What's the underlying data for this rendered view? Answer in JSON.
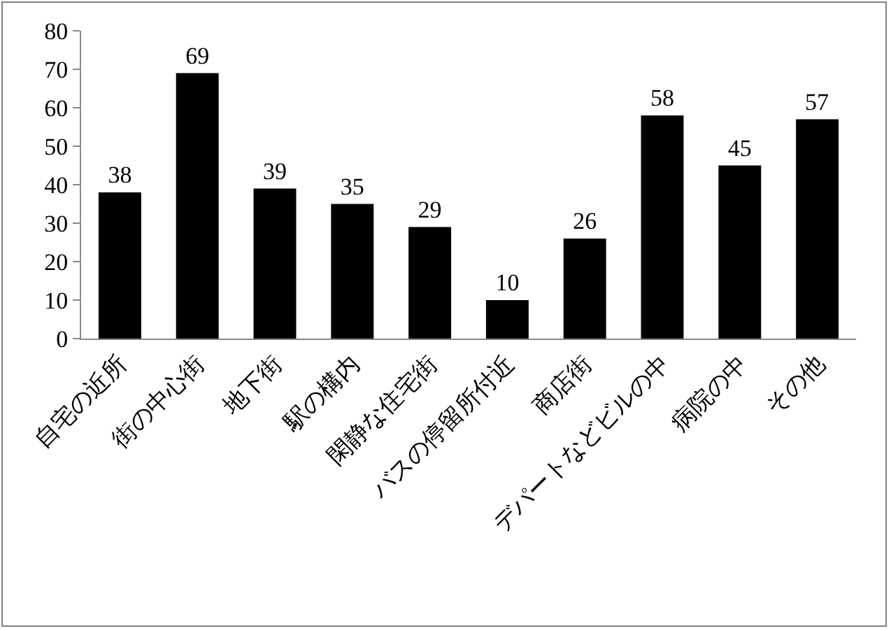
{
  "chart_data": {
    "type": "bar",
    "categories": [
      "自宅の近所",
      "街の中心街",
      "地下街",
      "駅の構内",
      "閑静な住宅街",
      "バスの停留所付近",
      "商店街",
      "デパートなどビルの中",
      "病院の中",
      "その他"
    ],
    "values": [
      38,
      69,
      39,
      35,
      29,
      10,
      26,
      58,
      45,
      57
    ],
    "color": "#000000",
    "ylim": [
      0,
      80
    ],
    "yticks": [
      0,
      10,
      20,
      30,
      40,
      50,
      60,
      70,
      80
    ],
    "grid": false,
    "data_labels": true
  }
}
